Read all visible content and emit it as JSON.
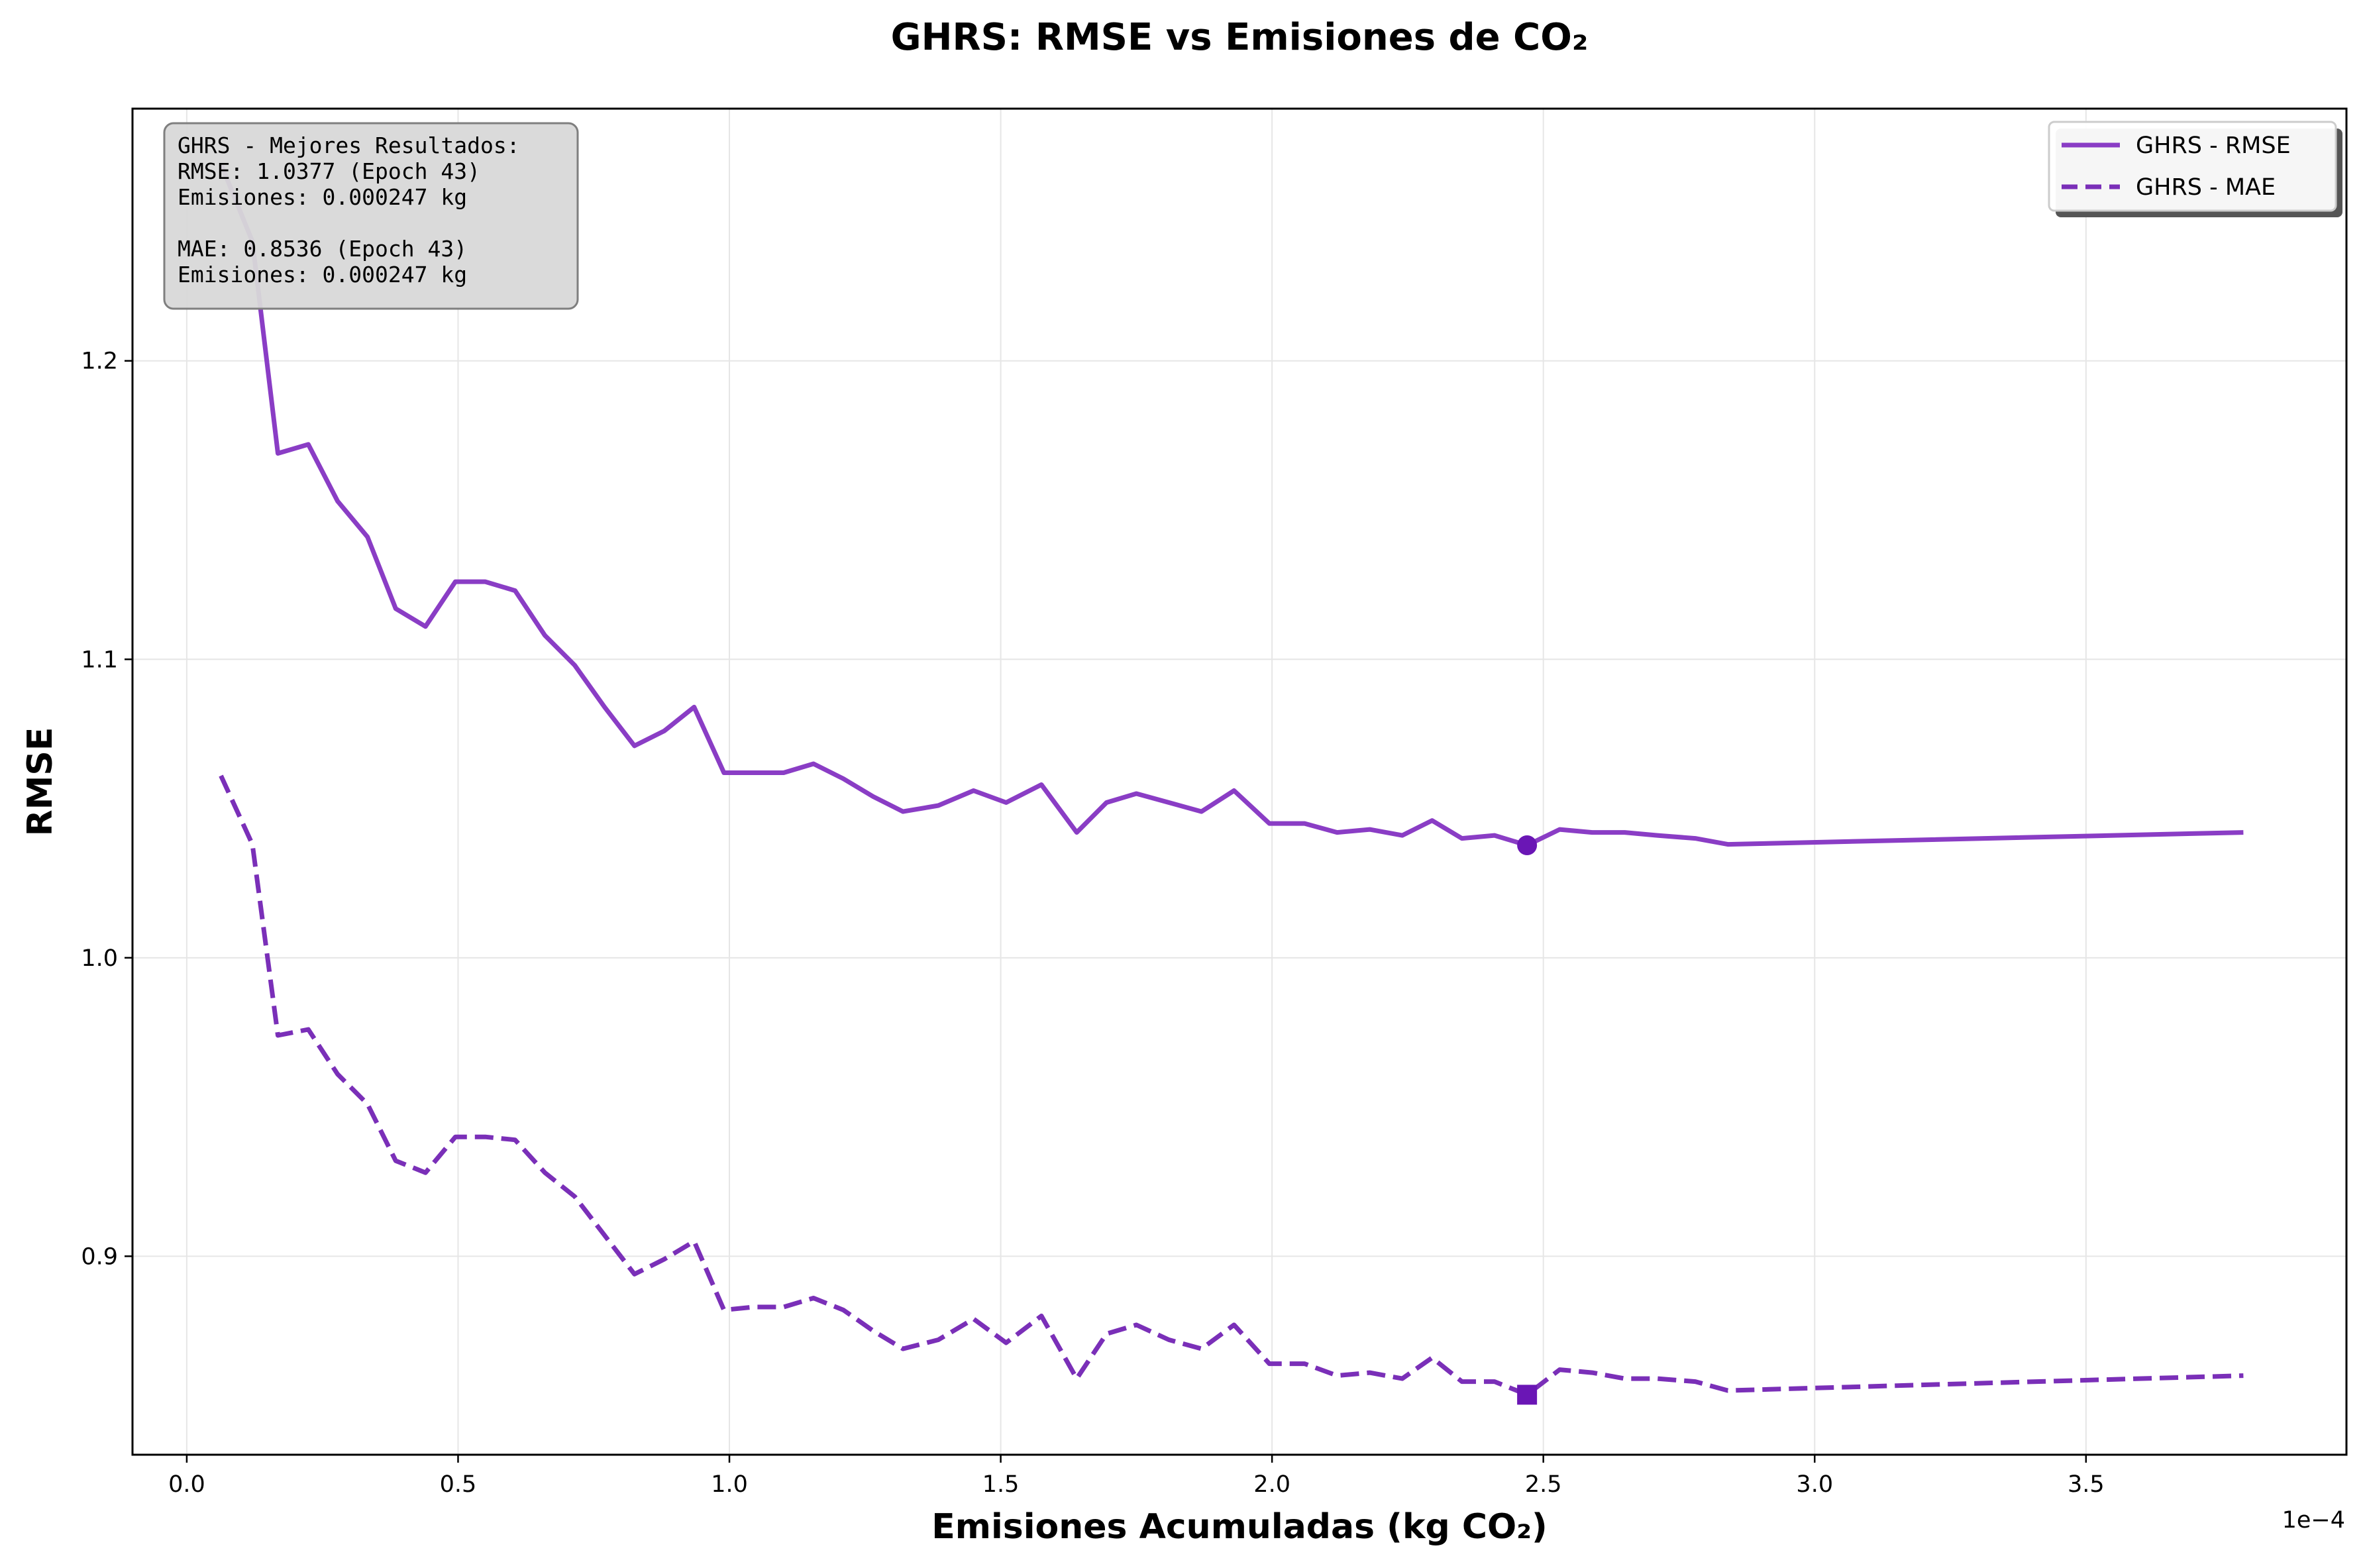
{
  "chart_data": {
    "type": "line",
    "title": "GHRS: RMSE vs Emisiones de CO₂",
    "xlabel": "Emisiones Acumuladas (kg CO₂)",
    "ylabel": "RMSE",
    "x_offset_text": "1e−4",
    "xlim": [
      -1e-05,
      0.000398
    ],
    "ylim": [
      0.8335,
      1.2845
    ],
    "xticks": [
      {
        "value": 0.0,
        "label": "0.0"
      },
      {
        "value": 5e-05,
        "label": "0.5"
      },
      {
        "value": 0.0001,
        "label": "1.0"
      },
      {
        "value": 0.00015,
        "label": "1.5"
      },
      {
        "value": 0.0002,
        "label": "2.0"
      },
      {
        "value": 0.00025,
        "label": "2.5"
      },
      {
        "value": 0.0003,
        "label": "3.0"
      },
      {
        "value": 0.00035,
        "label": "3.5"
      }
    ],
    "yticks": [
      {
        "value": 0.9,
        "label": "0.9"
      },
      {
        "value": 1.0,
        "label": "1.0"
      },
      {
        "value": 1.1,
        "label": "1.1"
      },
      {
        "value": 1.2,
        "label": "1.2"
      }
    ],
    "grid": true,
    "legend_position": "top-right",
    "series": [
      {
        "name": "GHRS - RMSE",
        "style": "solid",
        "color": "#8a3dc5",
        "x": [
          6.3e-06,
          1.21e-05,
          1.68e-05,
          2.24e-05,
          2.78e-05,
          3.33e-05,
          3.85e-05,
          4.4e-05,
          4.95e-05,
          5.5e-05,
          6.05e-05,
          6.6e-05,
          7.15e-05,
          7.7e-05,
          8.25e-05,
          8.8e-05,
          9.35e-05,
          9.9e-05,
          0.0001045,
          0.00011,
          0.0001155,
          0.000121,
          0.0001265,
          0.000132,
          0.0001385,
          0.000145,
          0.000151,
          0.0001575,
          0.000164,
          0.0001695,
          0.000175,
          0.000181,
          0.000187,
          0.000193,
          0.0001995,
          0.000206,
          0.000212,
          0.000218,
          0.000224,
          0.0002295,
          0.000235,
          0.000241,
          0.000247,
          0.000253,
          0.000259,
          0.000265,
          0.000271,
          0.000278,
          0.000284,
          0.000379
        ],
        "y": [
          1.266,
          1.24,
          1.169,
          1.172,
          1.153,
          1.141,
          1.117,
          1.111,
          1.126,
          1.126,
          1.123,
          1.108,
          1.098,
          1.084,
          1.071,
          1.076,
          1.084,
          1.062,
          1.062,
          1.062,
          1.065,
          1.06,
          1.054,
          1.049,
          1.051,
          1.056,
          1.052,
          1.058,
          1.042,
          1.052,
          1.055,
          1.052,
          1.049,
          1.056,
          1.045,
          1.045,
          1.042,
          1.043,
          1.041,
          1.046,
          1.04,
          1.041,
          1.0377,
          1.043,
          1.042,
          1.042,
          1.041,
          1.04,
          1.038,
          1.042
        ]
      },
      {
        "name": "GHRS - MAE",
        "style": "dashed",
        "color": "#7a2fb8",
        "x": [
          6.3e-06,
          1.21e-05,
          1.68e-05,
          2.24e-05,
          2.78e-05,
          3.33e-05,
          3.85e-05,
          4.4e-05,
          4.95e-05,
          5.5e-05,
          6.05e-05,
          6.6e-05,
          7.15e-05,
          7.7e-05,
          8.25e-05,
          8.8e-05,
          9.35e-05,
          9.9e-05,
          0.0001045,
          0.00011,
          0.0001155,
          0.000121,
          0.0001265,
          0.000132,
          0.0001385,
          0.000145,
          0.000151,
          0.0001575,
          0.000164,
          0.0001695,
          0.000175,
          0.000181,
          0.000187,
          0.000193,
          0.0001995,
          0.000206,
          0.000212,
          0.000218,
          0.000224,
          0.0002295,
          0.000235,
          0.000241,
          0.000247,
          0.000253,
          0.000259,
          0.000265,
          0.000271,
          0.000278,
          0.000284,
          0.000379
        ],
        "y": [
          1.061,
          1.038,
          0.974,
          0.976,
          0.961,
          0.951,
          0.932,
          0.928,
          0.94,
          0.94,
          0.939,
          0.928,
          0.92,
          0.907,
          0.894,
          0.899,
          0.905,
          0.882,
          0.883,
          0.883,
          0.886,
          0.882,
          0.875,
          0.869,
          0.872,
          0.879,
          0.871,
          0.88,
          0.859,
          0.874,
          0.877,
          0.872,
          0.869,
          0.877,
          0.864,
          0.864,
          0.86,
          0.861,
          0.859,
          0.866,
          0.858,
          0.858,
          0.8536,
          0.862,
          0.861,
          0.859,
          0.859,
          0.858,
          0.855,
          0.86
        ]
      }
    ],
    "best_markers": [
      {
        "series": "GHRS - RMSE",
        "x": 0.000247,
        "y": 1.0377,
        "shape": "circle",
        "color": "#6a16b5"
      },
      {
        "series": "GHRS - MAE",
        "x": 0.000247,
        "y": 0.8536,
        "shape": "square",
        "color": "#6a16b5"
      }
    ],
    "annotation_lines": [
      "GHRS - Mejores Resultados:",
      "RMSE: 1.0377 (Epoch 43)",
      "Emisiones: 0.000247 kg",
      "",
      "MAE: 0.8536 (Epoch 43)",
      "Emisiones: 0.000247 kg"
    ]
  }
}
